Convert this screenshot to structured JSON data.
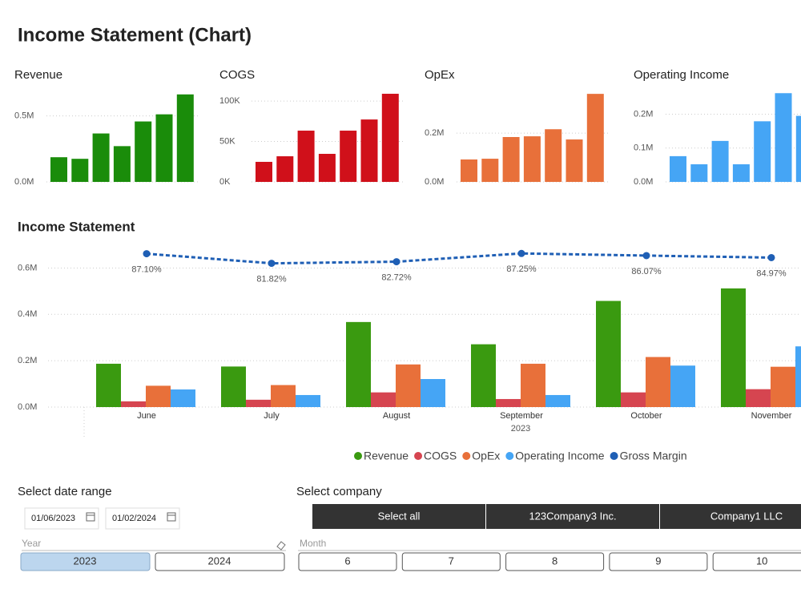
{
  "title": "Income Statement (Chart)",
  "chart_data": [
    {
      "type": "bar",
      "title": "Revenue",
      "color": "#1a8c0a",
      "values": [
        187000,
        175000,
        367000,
        271000,
        458000,
        512000,
        663000
      ],
      "ylim": [
        0,
        680000
      ],
      "yticks": [
        {
          "value": 0,
          "label": "0.0M"
        },
        {
          "value": 500000,
          "label": "0.5M"
        }
      ],
      "grid": true
    },
    {
      "type": "bar",
      "title": "COGS",
      "color": "#d0101a",
      "values": [
        24800,
        31700,
        63400,
        34700,
        63400,
        77200,
        109000
      ],
      "ylim": [
        0,
        111000
      ],
      "yticks": [
        {
          "value": 0,
          "label": "0K"
        },
        {
          "value": 50000,
          "label": "50K"
        },
        {
          "value": 100000,
          "label": "100K"
        }
      ],
      "grid": true
    },
    {
      "type": "bar",
      "title": "OpEx",
      "color": "#e8703a",
      "values": [
        92000,
        95000,
        184000,
        187000,
        216000,
        174000,
        361000
      ],
      "ylim": [
        0,
        368000
      ],
      "yticks": [
        {
          "value": 0,
          "label": "0.0M"
        },
        {
          "value": 200000,
          "label": "0.2M"
        }
      ],
      "grid": true
    },
    {
      "type": "bar",
      "title": "Operating Income",
      "color": "#45a5f5",
      "values": [
        76000,
        52000,
        121000,
        52000,
        179000,
        262000,
        195000
      ],
      "ylim": [
        0,
        265000
      ],
      "yticks": [
        {
          "value": 0,
          "label": "0.0M"
        },
        {
          "value": 100000,
          "label": "0.1M"
        },
        {
          "value": 200000,
          "label": "0.2M"
        }
      ],
      "grid": true
    },
    {
      "type": "combo",
      "title": "Income Statement",
      "categories": [
        "June",
        "July",
        "August",
        "September",
        "October",
        "November"
      ],
      "x_group_label": "2023",
      "series": [
        {
          "name": "Revenue",
          "color": "#3a9a10",
          "values": [
            187000,
            175000,
            367000,
            271000,
            458000,
            512000
          ]
        },
        {
          "name": "COGS",
          "color": "#d64550",
          "values": [
            24800,
            31700,
            63400,
            34700,
            63400,
            77200
          ]
        },
        {
          "name": "OpEx",
          "color": "#e8703a",
          "values": [
            92000,
            95000,
            184000,
            187000,
            216000,
            174000
          ]
        },
        {
          "name": "Operating Income",
          "color": "#45a5f5",
          "values": [
            76000,
            52000,
            121000,
            52000,
            179000,
            262000
          ]
        },
        {
          "name": "Gross Margin",
          "color": "#1f5fb5",
          "type": "line",
          "axis": "y2",
          "values": [
            87.1,
            81.82,
            82.72,
            87.25,
            86.07,
            84.97
          ],
          "value_labels": [
            "87.10%",
            "81.82%",
            "82.72%",
            "87.25%",
            "86.07%",
            "84.97%"
          ]
        }
      ],
      "ylim": [
        0,
        650000
      ],
      "yticks": [
        {
          "value": 0,
          "label": "0.0M"
        },
        {
          "value": 200000,
          "label": "0.2M"
        },
        {
          "value": 400000,
          "label": "0.4M"
        },
        {
          "value": 600000,
          "label": "0.6M"
        }
      ],
      "y2lim": [
        3,
        90
      ],
      "grid": true,
      "legend": "bottom"
    }
  ],
  "date_slicer": {
    "title": "Select date range",
    "start": "01/06/2023",
    "end": "01/02/2024"
  },
  "year_slicer": {
    "label": "Year",
    "options": [
      "2023",
      "2024"
    ],
    "selected": 0
  },
  "company_slicer": {
    "title": "Select company",
    "options": [
      "Select all",
      "123Company3 Inc.",
      "Company1 LLC"
    ]
  },
  "month_slicer": {
    "label": "Month",
    "options": [
      "6",
      "7",
      "8",
      "9",
      "10"
    ]
  }
}
